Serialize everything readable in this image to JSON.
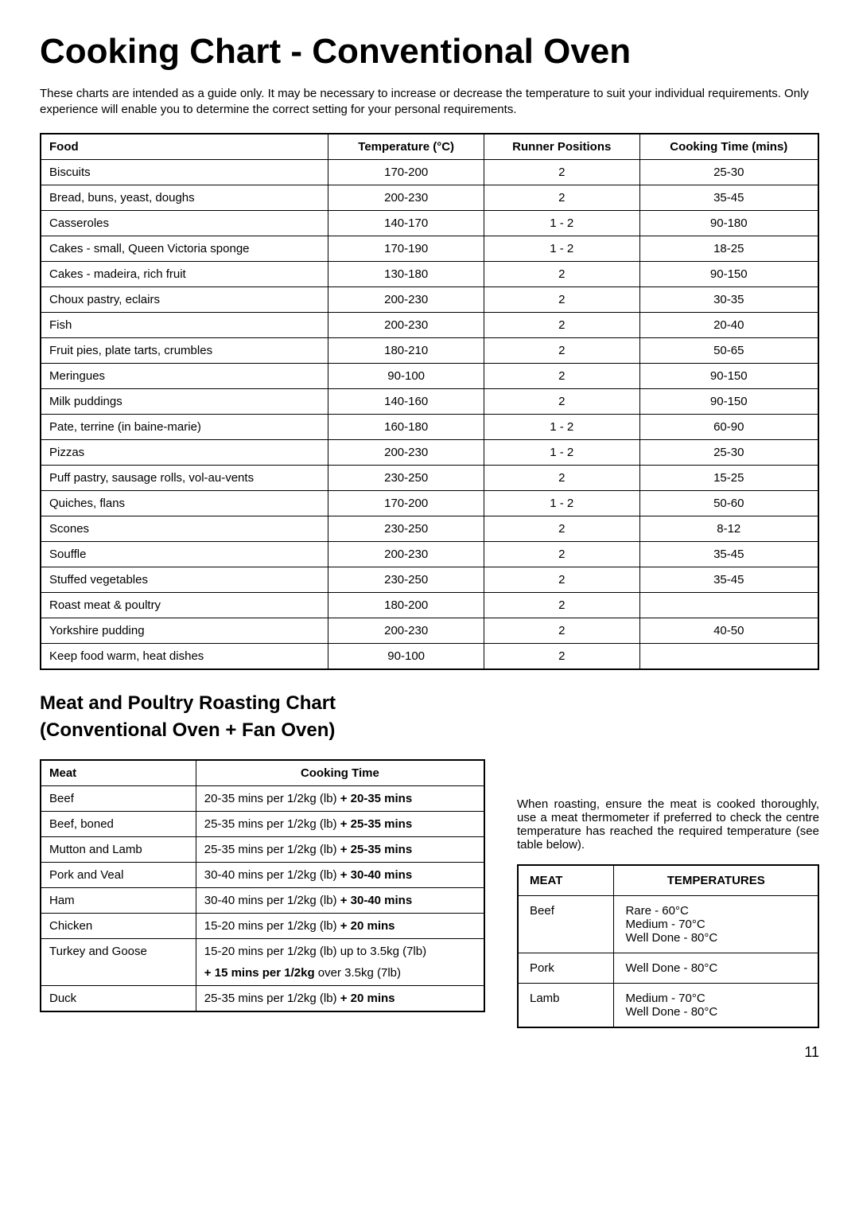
{
  "title": "Cooking Chart - Conventional Oven",
  "intro": "These charts are intended as a guide only. It may be necessary to increase or decrease the temperature to suit your individual requirements. Only experience will enable you to determine the correct setting for your personal requirements.",
  "main_table": {
    "columns": [
      "Food",
      "Temperature (°C)",
      "Runner Positions",
      "Cooking Time (mins)"
    ],
    "rows": [
      [
        "Biscuits",
        "170-200",
        "2",
        "25-30"
      ],
      [
        "Bread, buns, yeast, doughs",
        "200-230",
        "2",
        "35-45"
      ],
      [
        "Casseroles",
        "140-170",
        "1 - 2",
        "90-180"
      ],
      [
        "Cakes - small, Queen Victoria sponge",
        "170-190",
        "1 - 2",
        "18-25"
      ],
      [
        "Cakes - madeira, rich fruit",
        "130-180",
        "2",
        "90-150"
      ],
      [
        "Choux pastry, eclairs",
        "200-230",
        "2",
        "30-35"
      ],
      [
        "Fish",
        "200-230",
        "2",
        "20-40"
      ],
      [
        "Fruit pies, plate tarts, crumbles",
        "180-210",
        "2",
        "50-65"
      ],
      [
        "Meringues",
        "90-100",
        "2",
        "90-150"
      ],
      [
        "Milk puddings",
        "140-160",
        "2",
        "90-150"
      ],
      [
        "Pate, terrine (in baine-marie)",
        "160-180",
        "1 - 2",
        "60-90"
      ],
      [
        "Pizzas",
        "200-230",
        "1 - 2",
        "25-30"
      ],
      [
        "Puff pastry, sausage rolls, vol-au-vents",
        "230-250",
        "2",
        "15-25"
      ],
      [
        "Quiches, flans",
        "170-200",
        "1 - 2",
        "50-60"
      ],
      [
        "Scones",
        "230-250",
        "2",
        "8-12"
      ],
      [
        "Souffle",
        "200-230",
        "2",
        "35-45"
      ],
      [
        "Stuffed vegetables",
        "230-250",
        "2",
        "35-45"
      ],
      [
        "Roast meat & poultry",
        "180-200",
        "2",
        ""
      ],
      [
        "Yorkshire pudding",
        "200-230",
        "2",
        "40-50"
      ],
      [
        "Keep food warm, heat dishes",
        "90-100",
        "2",
        ""
      ]
    ]
  },
  "meat_heading": "Meat and Poultry Roasting Chart",
  "meat_subheading": "(Conventional Oven + Fan Oven)",
  "meat_table": {
    "columns": [
      "Meat",
      "Cooking Time"
    ],
    "rows": [
      {
        "meat": "Beef",
        "time_pre": "20-35 mins per 1/2kg (lb) ",
        "time_bold": "+ 20-35 mins"
      },
      {
        "meat": "Beef, boned",
        "time_pre": "25-35 mins per 1/2kg (lb) ",
        "time_bold": "+ 25-35 mins"
      },
      {
        "meat": "Mutton and Lamb",
        "time_pre": "25-35 mins per 1/2kg (lb) ",
        "time_bold": "+ 25-35 mins"
      },
      {
        "meat": "Pork and Veal",
        "time_pre": "30-40 mins per 1/2kg (lb) ",
        "time_bold": "+ 30-40 mins"
      },
      {
        "meat": "Ham",
        "time_pre": "30-40 mins per 1/2kg (lb) ",
        "time_bold": "+ 30-40 mins"
      },
      {
        "meat": "Chicken",
        "time_pre": "15-20 mins per 1/2kg (lb) ",
        "time_bold": "+ 20 mins"
      },
      {
        "meat": "Turkey and Goose",
        "time_pre": "15-20 mins per 1/2kg (lb) up to 3.5kg (7lb)",
        "time_bold": "",
        "extra_bold": "+ 15 mins per 1/2kg",
        "extra_post": " over 3.5kg (7lb)"
      },
      {
        "meat": "Duck",
        "time_pre": "25-35 mins per 1/2kg (lb) ",
        "time_bold": "+ 20 mins"
      }
    ]
  },
  "roast_note": "When roasting, ensure the meat is cooked thoroughly, use a meat thermometer if preferred to check the centre temperature has reached the required temperature (see table below).",
  "temp_table": {
    "columns": [
      "MEAT",
      "TEMPERATURES"
    ],
    "rows": [
      {
        "meat": "Beef",
        "lines": [
          "Rare - 60°C",
          "Medium - 70°C",
          "Well Done - 80°C"
        ]
      },
      {
        "meat": "Pork",
        "lines": [
          "Well Done - 80°C"
        ]
      },
      {
        "meat": "Lamb",
        "lines": [
          "Medium - 70°C",
          "Well Done - 80°C"
        ]
      }
    ]
  },
  "page_number": "11"
}
